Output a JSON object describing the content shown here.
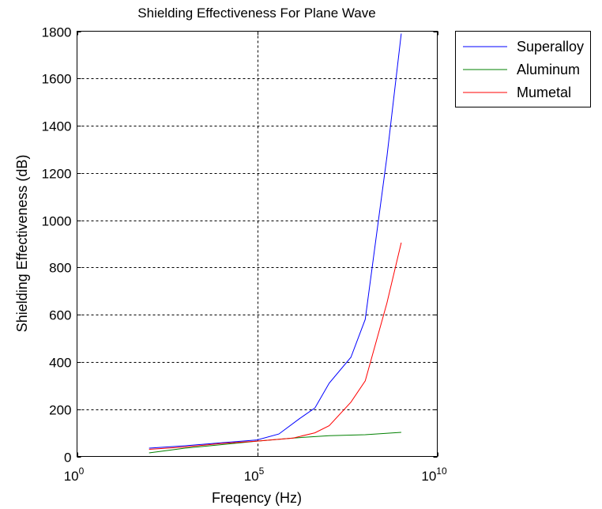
{
  "chart_data": {
    "type": "line",
    "title": "Shielding Effectiveness For Plane Wave",
    "xlabel": "Freqency (Hz)",
    "ylabel": "Shielding Effectiveness (dB)",
    "x_scale": "log",
    "xlim": [
      1,
      10000000000
    ],
    "ylim": [
      0,
      1800
    ],
    "grid": true,
    "legend_position": "outside-top-right",
    "x_ticks": [
      {
        "value": 1,
        "base": "10",
        "exp": "0"
      },
      {
        "value": 100000,
        "base": "10",
        "exp": "5"
      },
      {
        "value": 10000000000,
        "base": "10",
        "exp": "10"
      }
    ],
    "y_ticks": [
      0,
      200,
      400,
      600,
      800,
      1000,
      1200,
      1400,
      1600,
      1800
    ],
    "series": [
      {
        "name": "Superalloy",
        "color": "#0000ff",
        "x": [
          100,
          1000,
          10000,
          100000,
          400000,
          1500000,
          4000000,
          10000000,
          40000000,
          100000000,
          400000000,
          1000000000
        ],
        "y": [
          35,
          45,
          58,
          70,
          95,
          160,
          205,
          310,
          420,
          580,
          1270,
          1790
        ]
      },
      {
        "name": "Aluminum",
        "color": "#008000",
        "x": [
          100,
          1000,
          10000,
          100000,
          1000000,
          10000000,
          100000000,
          1000000000
        ],
        "y": [
          15,
          35,
          50,
          65,
          78,
          88,
          92,
          102
        ]
      },
      {
        "name": "Mumetal",
        "color": "#ff0000",
        "x": [
          100,
          1000,
          10000,
          100000,
          1000000,
          4000000,
          10000000,
          40000000,
          100000000,
          400000000,
          1000000000
        ],
        "y": [
          30,
          40,
          55,
          65,
          78,
          100,
          130,
          230,
          320,
          650,
          905
        ]
      }
    ]
  }
}
